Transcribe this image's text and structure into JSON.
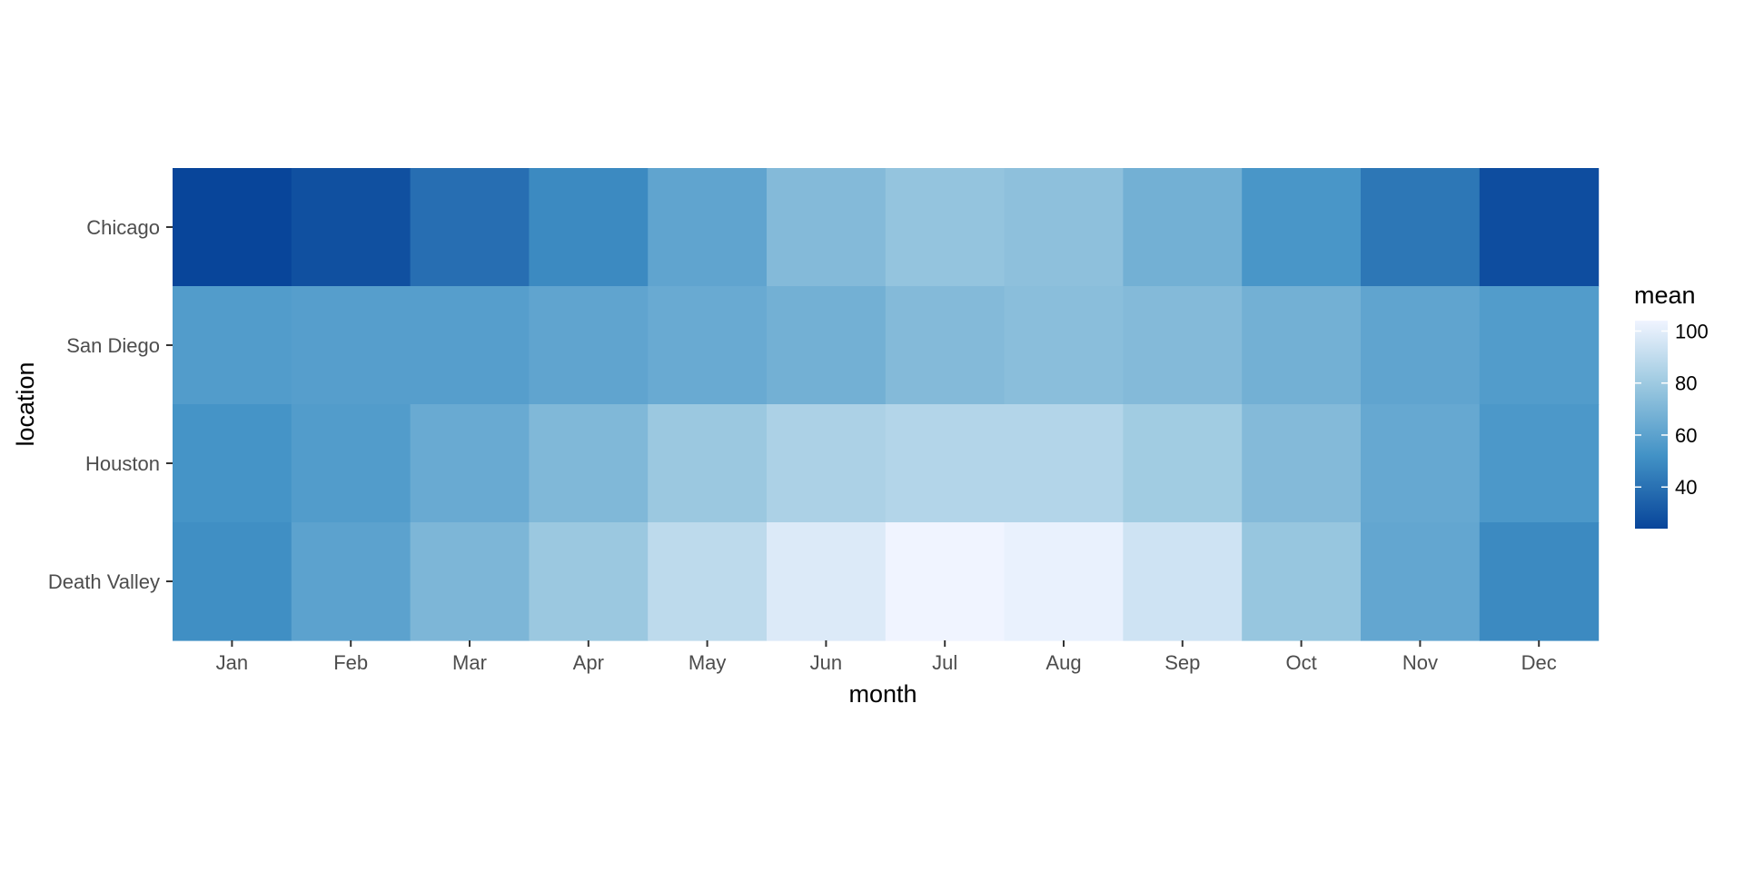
{
  "chart_data": {
    "type": "heatmap",
    "xlabel": "month",
    "ylabel": "location",
    "x_categories": [
      "Jan",
      "Feb",
      "Mar",
      "Apr",
      "May",
      "Jun",
      "Jul",
      "Aug",
      "Sep",
      "Oct",
      "Nov",
      "Dec"
    ],
    "y_categories": [
      "Chicago",
      "San Diego",
      "Houston",
      "Death Valley"
    ],
    "values": [
      [
        24,
        28,
        39,
        49,
        61,
        72,
        77,
        75,
        67,
        54,
        42,
        27
      ],
      [
        57,
        58,
        58,
        61,
        64,
        67,
        72,
        74,
        72,
        67,
        61,
        57
      ],
      [
        53,
        57,
        64,
        71,
        79,
        84,
        86,
        86,
        81,
        72,
        63,
        55
      ],
      [
        51,
        60,
        70,
        79,
        89,
        98,
        104,
        102,
        94,
        78,
        62,
        49
      ]
    ],
    "legend": {
      "title": "mean",
      "ticks": [
        40,
        60,
        80,
        100
      ],
      "range": [
        24,
        104
      ],
      "low_color": "#08459a",
      "high_color": "#f0f4ff",
      "position": "right"
    },
    "grid": false
  }
}
